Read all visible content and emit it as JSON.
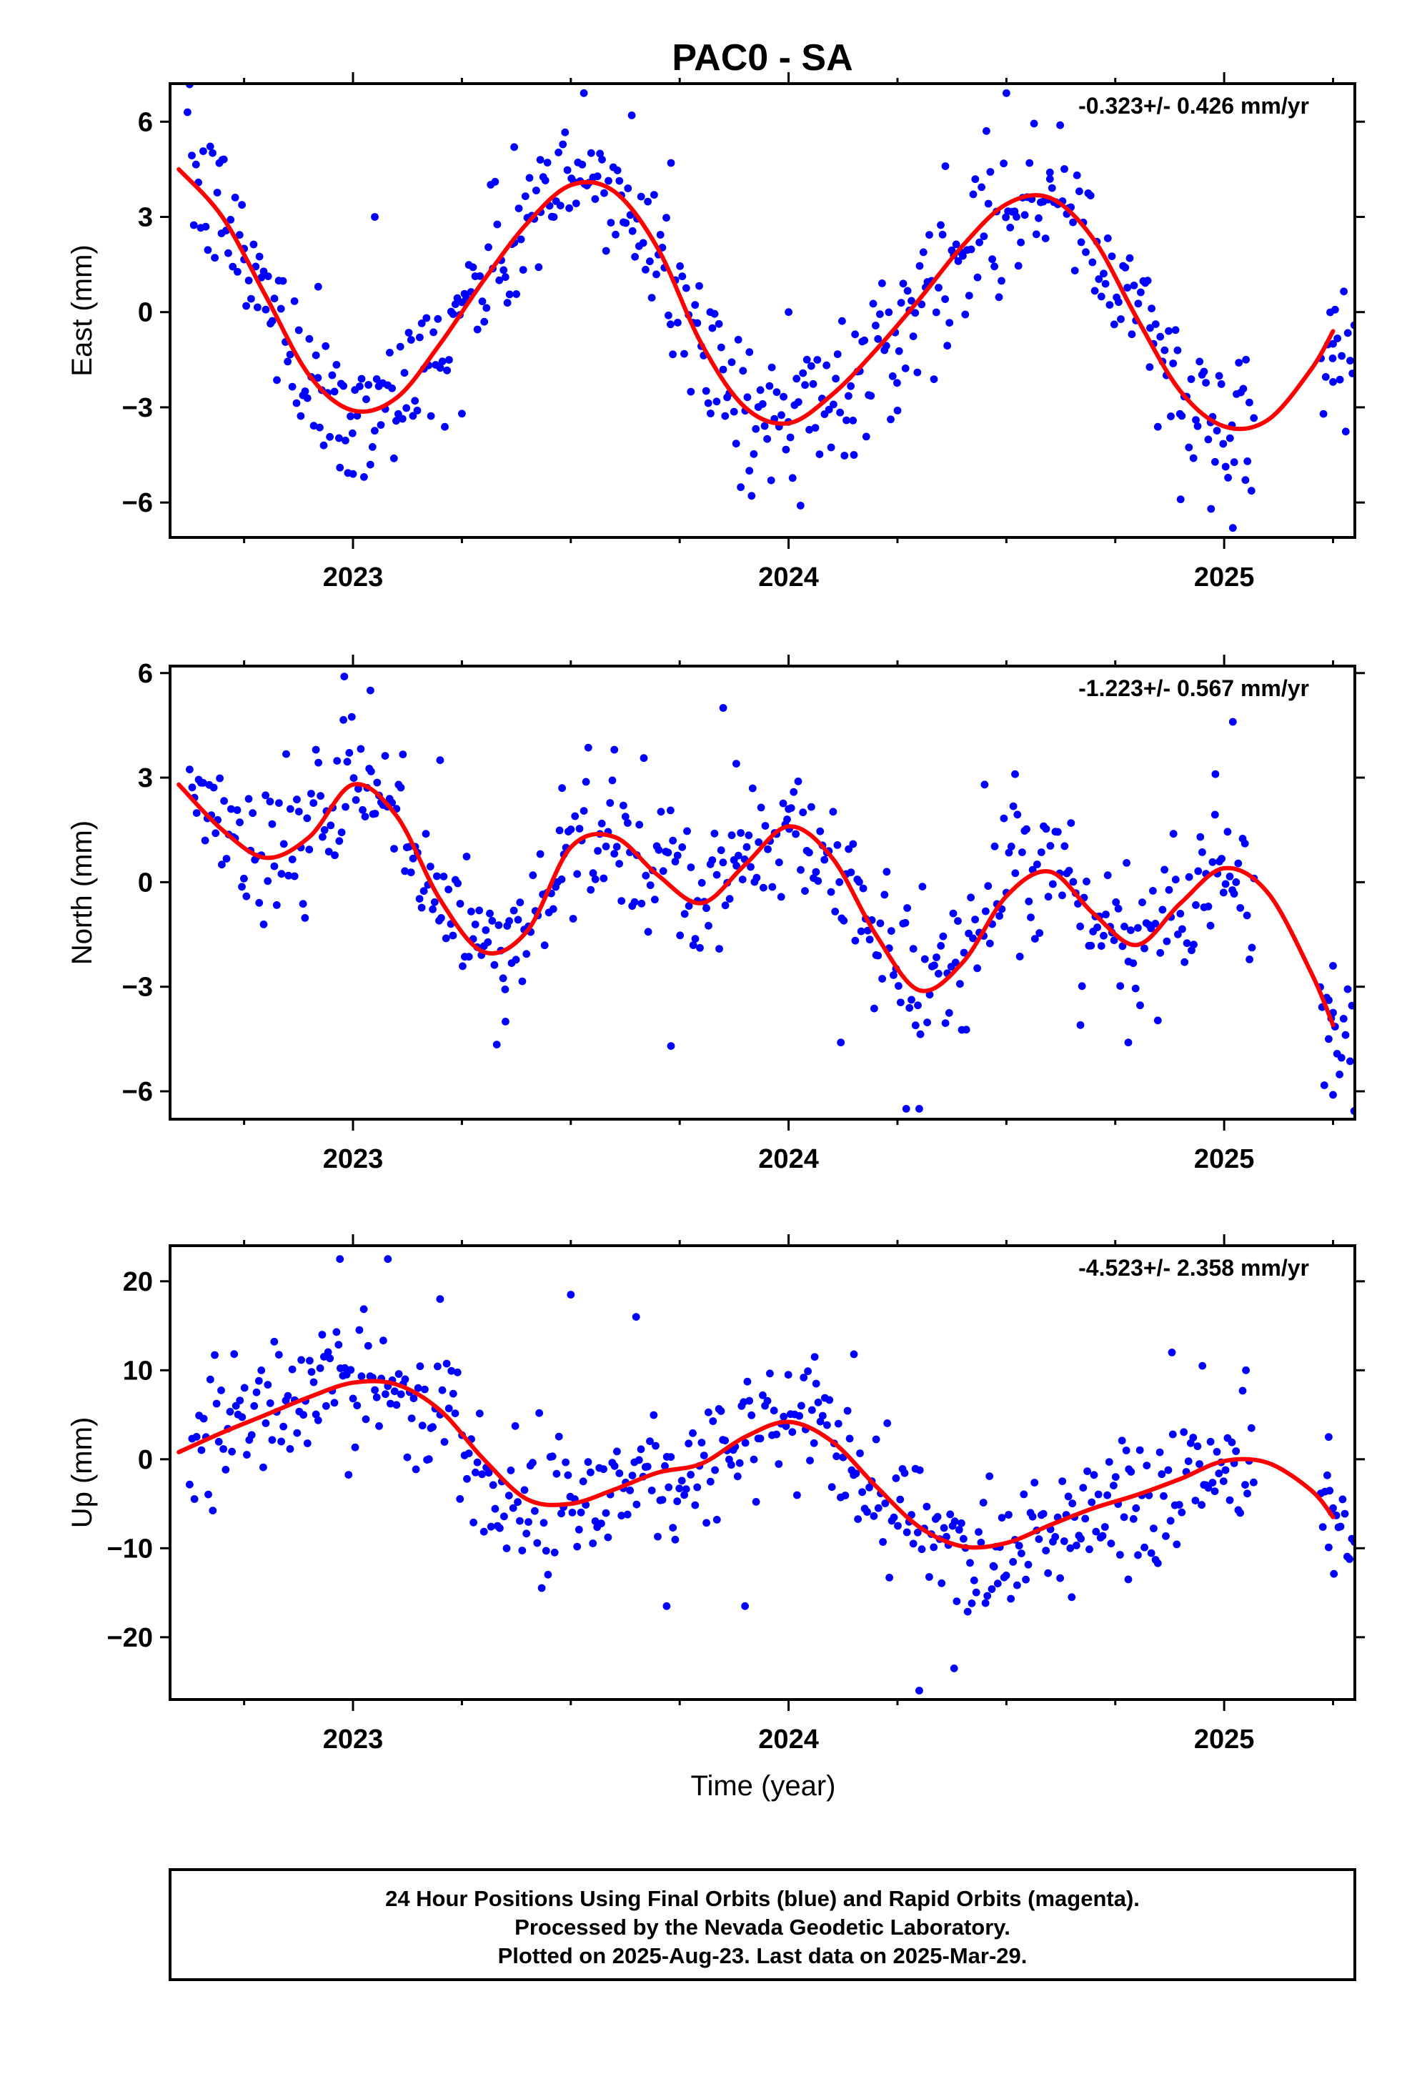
{
  "chart_data": {
    "type": "scatter",
    "title": "PAC0 - SA",
    "xlabel": "Time (year)",
    "xlim": [
      2022.58,
      2025.3
    ],
    "x_ticks": [
      "2023",
      "2024",
      "2025"
    ],
    "colors": {
      "points": "#0000ff",
      "fit": "#ff0000",
      "rapid_points": "#ff00ff"
    },
    "panels": [
      {
        "ylabel": "East (mm)",
        "rate": "-0.323+/- 0.426 mm/yr",
        "ylim": [
          -7.1,
          7.2
        ],
        "yticks": [
          6,
          3,
          0,
          -3,
          -6
        ],
        "yticks_text": [
          "6",
          "3",
          "0",
          "−3",
          "−6"
        ],
        "fit_x": [
          2022.6,
          2022.7,
          2022.8,
          2022.9,
          2023.0,
          2023.1,
          2023.2,
          2023.3,
          2023.4,
          2023.5,
          2023.6,
          2023.7,
          2023.8,
          2023.9,
          2024.0,
          2024.1,
          2024.2,
          2024.3,
          2024.4,
          2024.5,
          2024.6,
          2024.7,
          2024.8,
          2024.9,
          2025.0,
          2025.1,
          2025.2,
          2025.25
        ],
        "fit_y": [
          4.5,
          3.0,
          0.5,
          -2.0,
          -3.1,
          -2.7,
          -1.0,
          1.0,
          2.8,
          4.0,
          3.8,
          2.0,
          -1.0,
          -3.0,
          -3.5,
          -2.6,
          -1.2,
          0.4,
          2.1,
          3.4,
          3.6,
          2.3,
          -0.2,
          -2.5,
          -3.6,
          -3.4,
          -1.8,
          -0.6
        ],
        "noise": 1.1,
        "points": [
          [
            2022.62,
            6.3
          ],
          [
            2022.7,
            4.8
          ],
          [
            2022.75,
            2.0
          ],
          [
            2022.92,
            0.8
          ],
          [
            2022.97,
            -4.9
          ],
          [
            2023.0,
            -5.1
          ],
          [
            2023.05,
            3.0
          ],
          [
            2023.25,
            -3.2
          ],
          [
            2023.37,
            5.2
          ],
          [
            2023.43,
            4.8
          ],
          [
            2023.53,
            6.9
          ],
          [
            2023.64,
            6.2
          ],
          [
            2023.73,
            4.7
          ],
          [
            2023.82,
            0.0
          ],
          [
            2023.91,
            -5.0
          ],
          [
            2023.96,
            -5.3
          ],
          [
            2024.0,
            0.0
          ],
          [
            2024.15,
            -4.5
          ],
          [
            2024.25,
            -3.1
          ],
          [
            2024.36,
            4.6
          ],
          [
            2024.5,
            6.9
          ],
          [
            2024.6,
            4.4
          ],
          [
            2024.83,
            -0.5
          ],
          [
            2024.9,
            -5.9
          ],
          [
            2024.97,
            -6.2
          ],
          [
            2025.02,
            -6.8
          ],
          [
            2025.05,
            -1.5
          ],
          [
            2025.25,
            -1.0
          ],
          [
            2025.25,
            -2.2
          ]
        ]
      },
      {
        "ylabel": "North (mm)",
        "rate": "-1.223+/- 0.567 mm/yr",
        "ylim": [
          -6.8,
          6.2
        ],
        "yticks": [
          6,
          3,
          0,
          -3,
          -6
        ],
        "yticks_text": [
          "6",
          "3",
          "0",
          "−3",
          "−6"
        ],
        "fit_x": [
          2022.6,
          2022.7,
          2022.8,
          2022.9,
          2023.0,
          2023.1,
          2023.2,
          2023.3,
          2023.4,
          2023.5,
          2023.6,
          2023.7,
          2023.8,
          2023.9,
          2024.0,
          2024.1,
          2024.2,
          2024.3,
          2024.4,
          2024.5,
          2024.6,
          2024.7,
          2024.8,
          2024.9,
          2025.0,
          2025.1,
          2025.2,
          2025.25
        ],
        "fit_y": [
          2.8,
          1.5,
          0.7,
          1.3,
          2.8,
          1.9,
          -0.5,
          -2.0,
          -1.4,
          1.0,
          1.3,
          0.2,
          -0.6,
          0.5,
          1.6,
          0.7,
          -1.5,
          -3.1,
          -2.3,
          -0.4,
          0.3,
          -0.9,
          -1.8,
          -0.6,
          0.4,
          -0.3,
          -2.6,
          -4.1
        ],
        "noise": 1.0,
        "points": [
          [
            2022.98,
            5.9
          ],
          [
            2023.04,
            5.5
          ],
          [
            2023.2,
            3.5
          ],
          [
            2023.35,
            -4.0
          ],
          [
            2023.48,
            2.7
          ],
          [
            2023.6,
            3.8
          ],
          [
            2023.73,
            -4.7
          ],
          [
            2023.85,
            5.0
          ],
          [
            2023.88,
            3.4
          ],
          [
            2024.0,
            2.1
          ],
          [
            2024.12,
            -4.6
          ],
          [
            2024.27,
            -6.5
          ],
          [
            2024.3,
            -6.5
          ],
          [
            2024.45,
            2.8
          ],
          [
            2024.52,
            3.1
          ],
          [
            2024.67,
            -4.1
          ],
          [
            2024.78,
            -4.6
          ],
          [
            2024.98,
            3.1
          ],
          [
            2025.02,
            4.6
          ],
          [
            2025.25,
            -2.4
          ],
          [
            2025.24,
            -4.5
          ],
          [
            2025.25,
            -6.1
          ]
        ]
      },
      {
        "ylabel": "Up (mm)",
        "rate": "-4.523+/- 2.358 mm/yr",
        "ylim": [
          -27,
          24
        ],
        "yticks": [
          20,
          10,
          0,
          -10,
          -20
        ],
        "yticks_text": [
          "20",
          "10",
          "0",
          "−10",
          "−20"
        ],
        "fit_x": [
          2022.6,
          2022.7,
          2022.8,
          2022.9,
          2023.0,
          2023.1,
          2023.2,
          2023.3,
          2023.4,
          2023.5,
          2023.6,
          2023.7,
          2023.8,
          2023.9,
          2024.0,
          2024.1,
          2024.2,
          2024.3,
          2024.4,
          2024.5,
          2024.6,
          2024.7,
          2024.8,
          2024.9,
          2025.0,
          2025.1,
          2025.2,
          2025.25
        ],
        "fit_y": [
          0.8,
          3.0,
          5.0,
          7.0,
          8.6,
          8.4,
          5.5,
          0.0,
          -4.5,
          -5.0,
          -3.4,
          -1.5,
          -0.5,
          2.5,
          4.2,
          2.0,
          -3.0,
          -7.6,
          -9.8,
          -9.4,
          -7.4,
          -5.5,
          -4.0,
          -2.2,
          -0.2,
          -0.4,
          -3.5,
          -6.5
        ],
        "noise": 4.0,
        "points": [
          [
            2022.97,
            22.5
          ],
          [
            2023.08,
            22.5
          ],
          [
            2023.2,
            18.0
          ],
          [
            2023.5,
            18.5
          ],
          [
            2023.65,
            16.0
          ],
          [
            2023.72,
            -16.5
          ],
          [
            2023.9,
            -16.5
          ],
          [
            2024.06,
            11.5
          ],
          [
            2024.15,
            11.8
          ],
          [
            2024.3,
            -26.0
          ],
          [
            2024.38,
            -23.5
          ],
          [
            2024.47,
            -12.0
          ],
          [
            2024.65,
            -15.5
          ],
          [
            2024.78,
            -13.5
          ],
          [
            2024.88,
            12.0
          ],
          [
            2024.95,
            10.5
          ],
          [
            2025.05,
            10.0
          ],
          [
            2025.24,
            2.5
          ],
          [
            2025.25,
            -5.5
          ],
          [
            2025.24,
            -9.9
          ]
        ]
      }
    ]
  },
  "footer": {
    "line1": "24 Hour Positions Using Final Orbits (blue) and Rapid Orbits (magenta).",
    "line2": "Processed by the Nevada Geodetic Laboratory.",
    "line3": "Plotted on 2025-Aug-23. Last data on 2025-Mar-29."
  }
}
